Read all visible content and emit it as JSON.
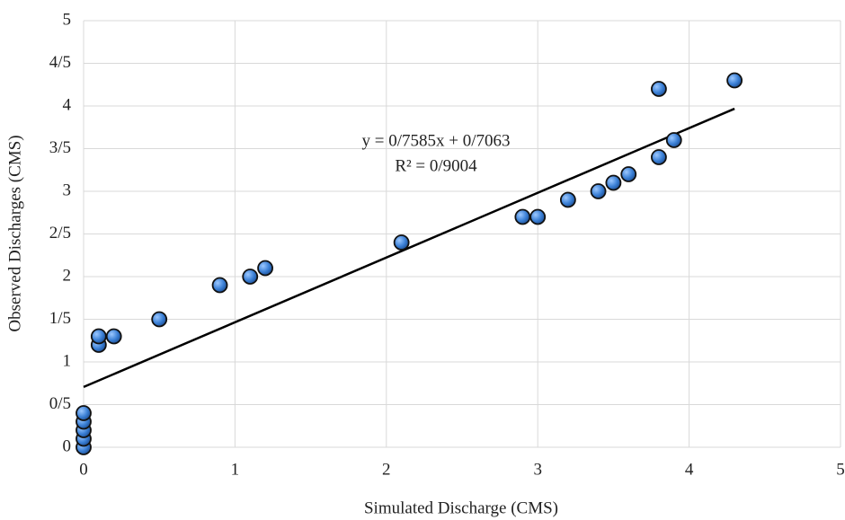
{
  "chart_data": {
    "type": "scatter",
    "xlabel": "Simulated Discharge (CMS)",
    "ylabel": "Observed Discharges  (CMS)",
    "xlim": [
      0,
      5
    ],
    "ylim": [
      0,
      5
    ],
    "xticks": [
      0,
      1,
      2,
      3,
      4,
      5
    ],
    "yticks": [
      0,
      {
        "value": 0.5,
        "label": "0/5"
      },
      1,
      {
        "value": 1.5,
        "label": "1/5"
      },
      2,
      {
        "value": 2.5,
        "label": "2/5"
      },
      3,
      {
        "value": 3.5,
        "label": "3/5"
      },
      4,
      {
        "value": 4.5,
        "label": "4/5"
      },
      5
    ],
    "grid": true,
    "series": [
      {
        "color": "#3a7fd5",
        "x": [
          0,
          0,
          0,
          0,
          0,
          0.1,
          0.1,
          0.2,
          0.5,
          0.9,
          1.1,
          1.2,
          2.1,
          2.9,
          3.0,
          3.2,
          3.4,
          3.5,
          3.6,
          3.8,
          3.8,
          3.9,
          4.3
        ],
        "values": [
          0,
          0.1,
          0.2,
          0.3,
          0.4,
          1.2,
          1.3,
          1.3,
          1.5,
          1.9,
          2.0,
          2.1,
          2.4,
          2.7,
          2.7,
          2.9,
          3.0,
          3.1,
          3.2,
          3.4,
          4.2,
          3.6,
          4.3
        ]
      }
    ],
    "trendline": {
      "color": "#000000",
      "x": [
        0,
        4.3
      ],
      "values": [
        0.7063,
        3.968
      ]
    },
    "annotations": [
      "y = 0/7585x + 0/7063",
      "R² = 0/9004"
    ]
  }
}
